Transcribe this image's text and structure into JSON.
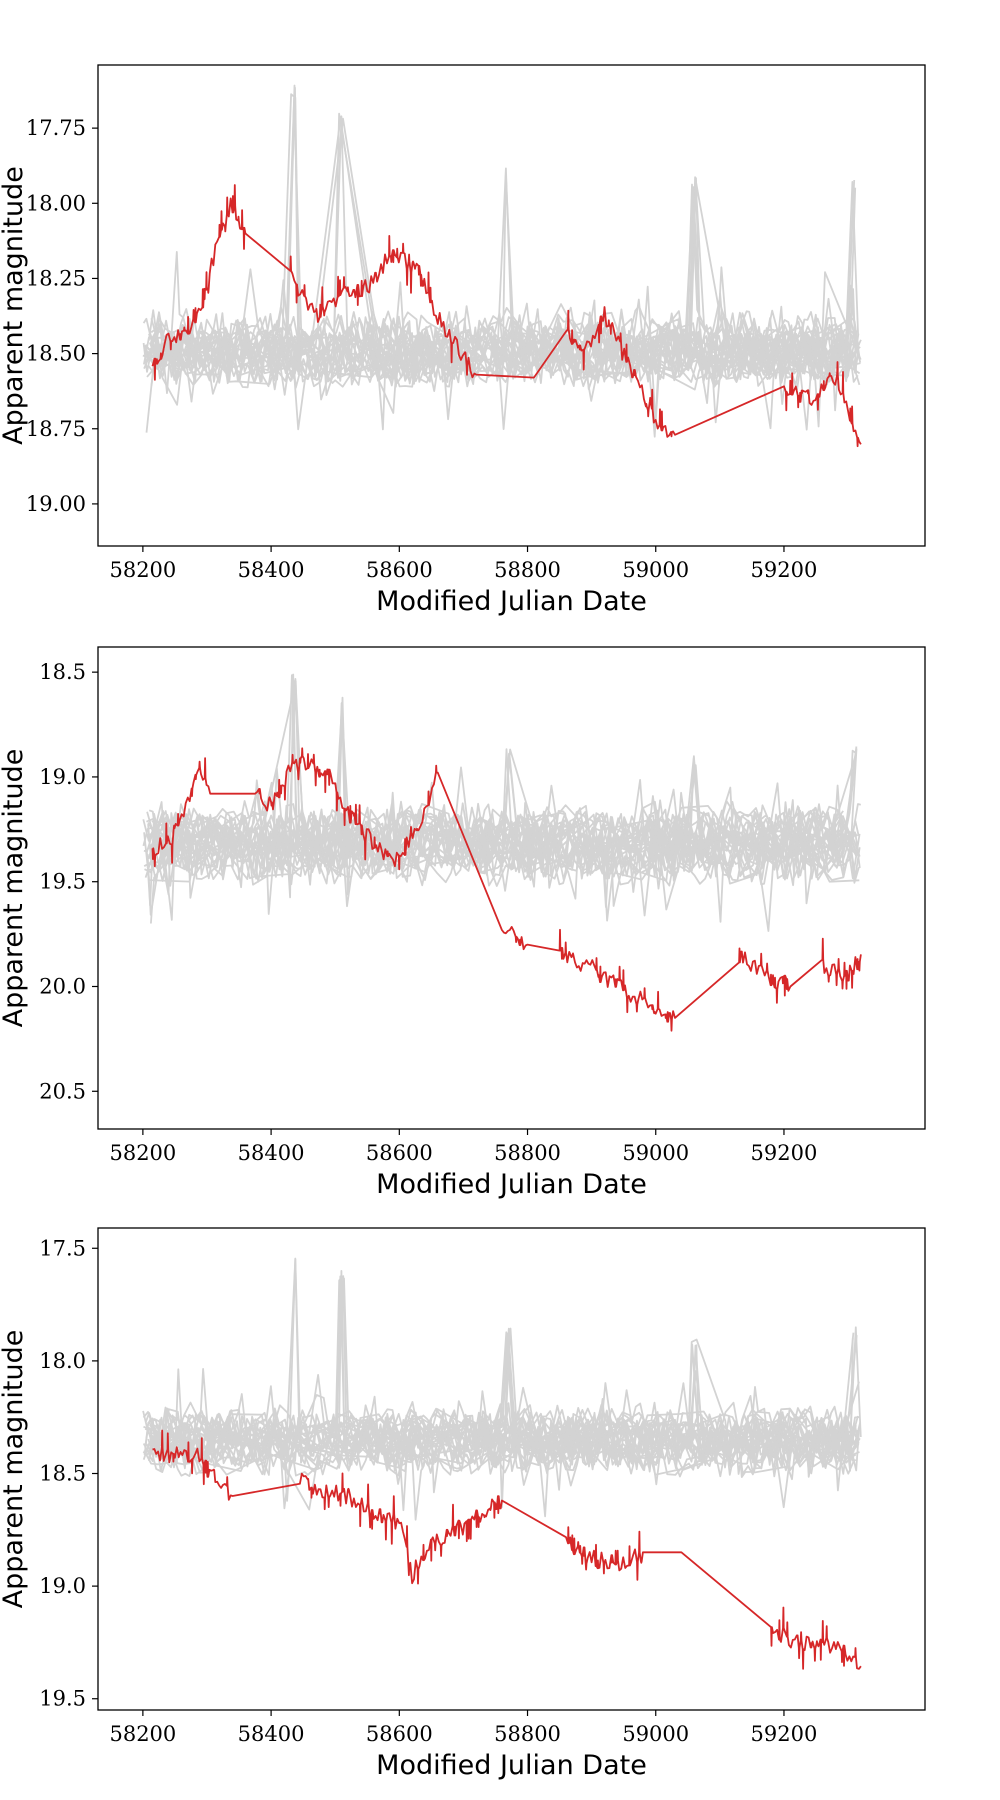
{
  "chart_data": [
    {
      "type": "line",
      "xlabel": "Modified Julian Date",
      "ylabel": "Apparent magnitude",
      "xlim": [
        58130,
        59420
      ],
      "ylim": [
        19.14,
        17.54
      ],
      "y_inverted": true,
      "xticks": [
        58200,
        58400,
        58600,
        58800,
        59000,
        59200
      ],
      "yticks": [
        17.75,
        18.0,
        18.25,
        18.5,
        18.75,
        19.0
      ],
      "ytick_labels": [
        "17.75",
        "18.00",
        "18.25",
        "18.50",
        "18.75",
        "19.00"
      ],
      "grid": false,
      "series": [
        {
          "role": "background",
          "color": "#d3d3d3",
          "x_range": [
            58200,
            59320
          ],
          "center": 18.47,
          "spread": 0.11,
          "peaks": [
            [
              58435,
              17.6
            ],
            [
              58510,
              17.67
            ],
            [
              58770,
              17.87
            ],
            [
              59060,
              17.9
            ],
            [
              59310,
              17.9
            ]
          ]
        },
        {
          "role": "highlight",
          "color": "#d62728",
          "x": [
            58215,
            58240,
            58270,
            58290,
            58310,
            58337,
            58360,
            58430,
            58470,
            58510,
            58550,
            58590,
            58630,
            58660,
            58690,
            58720,
            58810,
            58860,
            58890,
            58920,
            58960,
            59000,
            59030,
            59200,
            59240,
            59280,
            59300,
            59320
          ],
          "y": [
            18.55,
            18.45,
            18.42,
            18.36,
            18.18,
            18.01,
            18.1,
            18.25,
            18.38,
            18.3,
            18.28,
            18.16,
            18.22,
            18.38,
            18.48,
            18.57,
            18.58,
            18.43,
            18.5,
            18.37,
            18.55,
            18.72,
            18.77,
            18.62,
            18.65,
            18.58,
            18.68,
            18.82
          ]
        }
      ]
    },
    {
      "type": "line",
      "xlabel": "Modified Julian Date",
      "ylabel": "Apparent magnitude",
      "xlim": [
        58130,
        59420
      ],
      "ylim": [
        20.68,
        18.38
      ],
      "y_inverted": true,
      "xticks": [
        58200,
        58400,
        58600,
        58800,
        59000,
        59200
      ],
      "yticks": [
        18.5,
        19.0,
        19.5,
        20.0,
        20.5
      ],
      "ytick_labels": [
        "18.5",
        "19.0",
        "19.5",
        "20.0",
        "20.5"
      ],
      "grid": false,
      "series": [
        {
          "role": "background",
          "color": "#d3d3d3",
          "x_range": [
            58200,
            59320
          ],
          "center": 19.32,
          "spread": 0.16,
          "peaks": [
            [
              58435,
              18.5
            ],
            [
              58510,
              18.6
            ],
            [
              58770,
              18.85
            ],
            [
              59060,
              18.9
            ],
            [
              59310,
              18.85
            ]
          ]
        },
        {
          "role": "highlight",
          "color": "#d62728",
          "x": [
            58215,
            58245,
            58270,
            58285,
            58305,
            58375,
            58400,
            58430,
            58460,
            58490,
            58520,
            58555,
            58590,
            58630,
            58660,
            58760,
            58800,
            58850,
            58895,
            58940,
            58970,
            59000,
            59030,
            59130,
            59170,
            59210,
            59260,
            59300,
            59320
          ],
          "y": [
            19.35,
            19.3,
            19.1,
            18.98,
            19.08,
            19.05,
            19.15,
            18.95,
            18.92,
            19.0,
            19.18,
            19.3,
            19.42,
            19.25,
            18.98,
            19.7,
            19.8,
            19.85,
            19.9,
            20.0,
            20.05,
            20.1,
            20.15,
            19.85,
            19.95,
            20.0,
            19.9,
            19.95,
            19.85
          ]
        }
      ]
    },
    {
      "type": "line",
      "xlabel": "Modified Julian Date",
      "ylabel": "Apparent magnitude",
      "xlim": [
        58130,
        59420
      ],
      "ylim": [
        19.55,
        17.41
      ],
      "y_inverted": true,
      "xticks": [
        58200,
        58400,
        58600,
        58800,
        59000,
        59200
      ],
      "yticks": [
        17.5,
        18.0,
        18.5,
        19.0,
        19.5
      ],
      "ytick_labels": [
        "17.5",
        "18.0",
        "18.5",
        "19.0",
        "19.5"
      ],
      "grid": false,
      "series": [
        {
          "role": "background",
          "color": "#d3d3d3",
          "x_range": [
            58200,
            59320
          ],
          "center": 18.35,
          "spread": 0.13,
          "peaks": [
            [
              58435,
              17.5
            ],
            [
              58510,
              17.6
            ],
            [
              58770,
              17.85
            ],
            [
              59060,
              17.9
            ],
            [
              59310,
              17.85
            ]
          ]
        },
        {
          "role": "highlight",
          "color": "#d62728",
          "x": [
            58215,
            58250,
            58285,
            58310,
            58340,
            58445,
            58480,
            58520,
            58560,
            58600,
            58620,
            58640,
            58680,
            58720,
            58760,
            58860,
            58900,
            58940,
            58980,
            59040,
            59180,
            59220,
            59260,
            59290,
            59320
          ],
          "y": [
            18.4,
            18.42,
            18.42,
            18.52,
            18.6,
            18.53,
            18.57,
            18.6,
            18.68,
            18.72,
            18.95,
            18.85,
            18.75,
            18.7,
            18.62,
            18.82,
            18.88,
            18.9,
            18.85,
            18.85,
            19.2,
            19.25,
            19.25,
            19.28,
            19.35
          ]
        }
      ]
    }
  ]
}
